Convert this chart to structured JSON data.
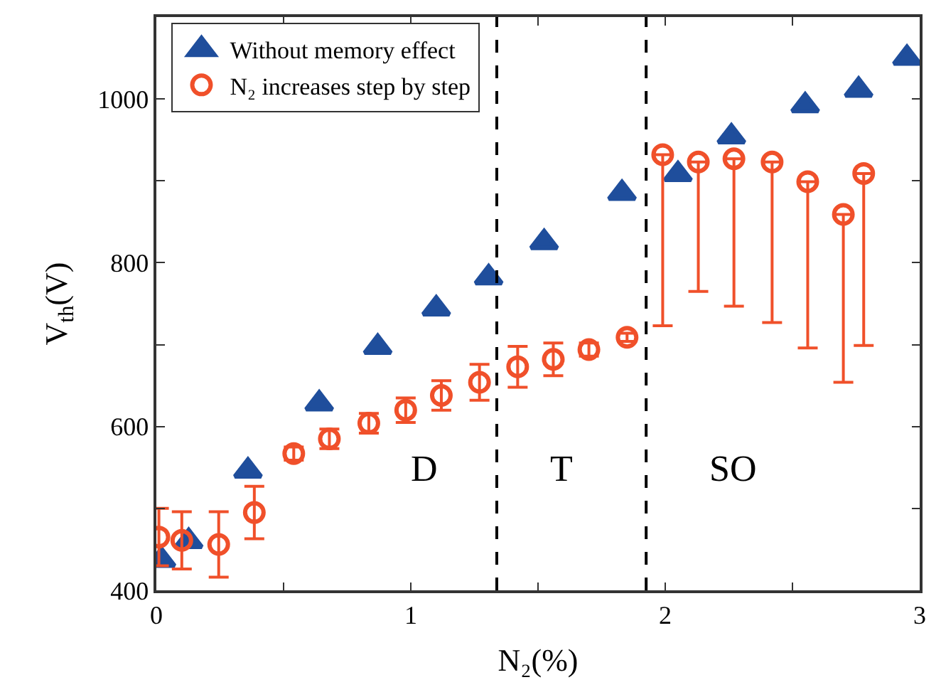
{
  "chart_data": {
    "type": "scatter",
    "xlabel": "N₂(%)",
    "ylabel": "V$_{th}$(V)",
    "xlim": [
      0,
      3
    ],
    "ylim": [
      400,
      1100
    ],
    "xticks": [
      0,
      {
        "value": 0.5,
        "label": null
      },
      1,
      {
        "value": 1.5,
        "label": null
      },
      2,
      {
        "value": 2.5,
        "label": null
      },
      3
    ],
    "yticks": [
      400,
      {
        "value": 500,
        "label": null
      },
      600,
      {
        "value": 700,
        "label": null
      },
      800,
      {
        "value": 900,
        "label": null
      },
      1000
    ],
    "legend": "top left",
    "series": [
      {
        "name": "Without memory effect",
        "color": "#1f4e9c",
        "marker": "triangle",
        "x": [
          0.02,
          0.127,
          0.36,
          0.64,
          0.87,
          1.1,
          1.306,
          1.524,
          1.83,
          2.05,
          2.26,
          2.55,
          2.76,
          2.95
        ],
        "values": [
          437,
          460,
          546,
          628,
          697,
          744,
          782,
          825,
          885,
          908,
          954,
          992,
          1011,
          1050
        ]
      },
      {
        "name": "N₂ increases step by step",
        "color": "#f0502a",
        "marker": "circle",
        "x": [
          0.01,
          0.1,
          0.245,
          0.385,
          0.54,
          0.68,
          0.835,
          0.98,
          1.12,
          1.27,
          1.42,
          1.56,
          1.7,
          1.85,
          1.99,
          2.13,
          2.27,
          2.42,
          2.56,
          2.7,
          2.78
        ],
        "values": [
          465,
          461,
          456,
          495,
          567,
          585,
          604,
          620,
          638,
          654,
          673,
          682,
          694,
          709,
          932,
          923,
          927,
          923,
          899,
          859,
          909
        ],
        "errors": [
          35,
          35,
          40,
          32,
          8,
          12,
          12,
          15,
          18,
          22,
          25,
          20,
          8,
          5,
          [
            723,
            932
          ],
          [
            765,
            923
          ],
          [
            747,
            927
          ],
          [
            727,
            923
          ],
          [
            696,
            899
          ],
          [
            654,
            859
          ],
          [
            699,
            909
          ]
        ]
      }
    ],
    "ref_lines": [
      {
        "axis": "x",
        "value": 1.338,
        "color": "#000000",
        "line_style": "dashed"
      },
      {
        "axis": "x",
        "value": 1.925,
        "color": "#000000",
        "line_style": "dashed"
      }
    ],
    "annotations": [
      "D",
      "T",
      "SO"
    ]
  }
}
